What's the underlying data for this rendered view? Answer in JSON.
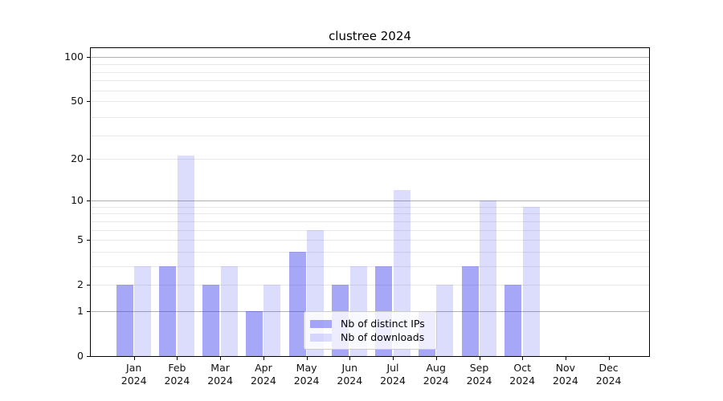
{
  "chart_data": {
    "type": "bar",
    "title": "clustree 2024",
    "categories": [
      "Jan",
      "Feb",
      "Mar",
      "Apr",
      "May",
      "Jun",
      "Jul",
      "Aug",
      "Sep",
      "Oct",
      "Nov",
      "Dec"
    ],
    "x_tick_second_line": "2024",
    "series": [
      {
        "name": "Nb of distinct IPs",
        "color": "rgba(60,60,240,0.45)",
        "values": [
          2,
          3,
          2,
          1,
          4,
          2,
          3,
          1,
          3,
          2,
          0,
          0
        ]
      },
      {
        "name": "Nb of downloads",
        "color": "rgba(60,60,240,0.18)",
        "values": [
          3,
          21,
          3,
          2,
          6,
          3,
          12,
          2,
          10,
          9,
          0,
          0
        ]
      }
    ],
    "y_scale": "log(1+x)",
    "y_ticks": [
      0,
      1,
      2,
      5,
      10,
      20,
      50,
      100
    ],
    "ylim": [
      0,
      114
    ],
    "grid": {
      "major_lines": [
        1,
        10,
        100
      ],
      "minor_lines": [
        2,
        3,
        4,
        5,
        6,
        7,
        8,
        9,
        20,
        29,
        39,
        50,
        59,
        69,
        79,
        89
      ],
      "major_color": "#b0b0b0",
      "minor_color": "#e8e8e8"
    },
    "legend_position": "lower center"
  }
}
